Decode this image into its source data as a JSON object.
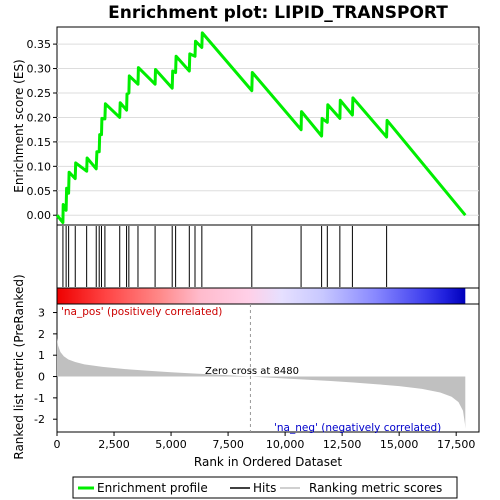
{
  "chart_data": {
    "type": "line",
    "title": "Enrichment plot: LIPID_TRANSPORT",
    "es_panel": {
      "ylabel": "Enrichment score (ES)",
      "ylim": [
        -0.02,
        0.385
      ],
      "yticks": [
        0.0,
        0.05,
        0.1,
        0.15,
        0.2,
        0.25,
        0.3,
        0.35
      ],
      "ytick_labels": [
        "0.00",
        "0.05",
        "0.10",
        "0.15",
        "0.20",
        "0.25",
        "0.30",
        "0.35"
      ],
      "series": [
        {
          "name": "Enrichment profile",
          "color": "#00ee00",
          "x": [
            0,
            260,
            270,
            400,
            420,
            510,
            530,
            800,
            820,
            1300,
            1320,
            1720,
            1750,
            1850,
            1870,
            1950,
            1970,
            2100,
            2120,
            2750,
            2770,
            3050,
            3070,
            3150,
            3170,
            3550,
            3570,
            4300,
            4320,
            5050,
            5070,
            5200,
            5220,
            5800,
            5820,
            6050,
            6070,
            6350,
            6370,
            8540,
            8560,
            10700,
            10720,
            11600,
            11620,
            11850,
            11870,
            12400,
            12420,
            12950,
            12970,
            14450,
            14470,
            17900
          ],
          "y": [
            0.0,
            -0.015,
            0.022,
            0.01,
            0.055,
            0.045,
            0.088,
            0.075,
            0.107,
            0.09,
            0.117,
            0.095,
            0.13,
            0.13,
            0.165,
            0.165,
            0.198,
            0.197,
            0.228,
            0.2,
            0.23,
            0.215,
            0.248,
            0.25,
            0.285,
            0.268,
            0.302,
            0.268,
            0.298,
            0.26,
            0.295,
            0.292,
            0.325,
            0.295,
            0.33,
            0.325,
            0.356,
            0.343,
            0.373,
            0.255,
            0.292,
            0.175,
            0.212,
            0.162,
            0.198,
            0.19,
            0.226,
            0.198,
            0.235,
            0.205,
            0.24,
            0.16,
            0.194,
            0.0
          ]
        }
      ]
    },
    "hits_panel": {
      "hit_positions": [
        260,
        400,
        510,
        800,
        1300,
        1720,
        1850,
        1950,
        2100,
        2750,
        3050,
        3150,
        3550,
        4300,
        5050,
        5200,
        5800,
        6050,
        6350,
        8540,
        10700,
        11600,
        11850,
        12400,
        12950,
        14450
      ]
    },
    "metric_panel": {
      "ylabel": "Ranked list metric (PreRanked)",
      "xlabel": "Rank in Ordered Dataset",
      "xlim": [
        0,
        18500
      ],
      "ylim": [
        -2.6,
        3.4
      ],
      "xticks": [
        0,
        2500,
        5000,
        7500,
        10000,
        12500,
        15000,
        17500
      ],
      "xtick_labels": [
        "0",
        "2,500",
        "5,000",
        "7,500",
        "10,000",
        "12,500",
        "15,000",
        "17,500"
      ],
      "yticks": [
        -2,
        -1,
        0,
        1,
        2,
        3
      ],
      "ytick_labels": [
        "-2",
        "-1",
        "0",
        "1",
        "2",
        "3"
      ],
      "fill_color": "#c0c0c0",
      "metric_x": [
        0,
        50,
        150,
        300,
        500,
        800,
        1200,
        2000,
        3000,
        4000,
        5000,
        6000,
        7000,
        8000,
        8480,
        9000,
        10000,
        11000,
        12000,
        13000,
        14000,
        15000,
        16000,
        16800,
        17300,
        17600,
        17800,
        17880,
        17900
      ],
      "metric_y": [
        1.8,
        1.45,
        1.15,
        0.95,
        0.8,
        0.68,
        0.57,
        0.45,
        0.35,
        0.27,
        0.2,
        0.14,
        0.09,
        0.03,
        0.0,
        -0.03,
        -0.09,
        -0.15,
        -0.21,
        -0.28,
        -0.36,
        -0.45,
        -0.58,
        -0.75,
        -0.95,
        -1.2,
        -1.6,
        -2.2,
        -2.45
      ],
      "zero_cross": 8480,
      "zero_cross_label": "Zero cross at 8480",
      "pos_label": "'na_pos' (positively correlated)",
      "neg_label": "'na_neg' (negatively correlated)",
      "pos_label_color": "#cc0000",
      "neg_label_color": "#0000cc"
    },
    "xlim": [
      0,
      18500
    ],
    "total_genes": 17900,
    "legend": {
      "placement": "bottom",
      "items": [
        {
          "label": "Enrichment profile",
          "color": "#00ee00"
        },
        {
          "label": "Hits",
          "color": "#000000"
        },
        {
          "label": "Ranking metric scores",
          "color": "#c0c0c0"
        }
      ]
    }
  }
}
